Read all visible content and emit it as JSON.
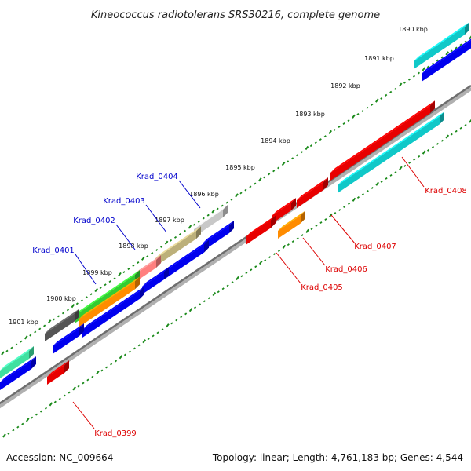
{
  "title": "Kineococcus radiotolerans SRS30216, complete genome",
  "footer": {
    "accession": "Accession: NC_009664",
    "topology": "Topology: linear; Length: 4,761,183 bp; Genes: 4,544"
  },
  "colors": {
    "backbone": "#777777",
    "ruler": "#1a8a1a",
    "label_forward": "#0000cc",
    "label_reverse": "#dd0000",
    "forward_blue": "#0000ee",
    "reverse_red": "#ee0000"
  },
  "ruler_labels": [
    "1890 kbp",
    "1891 kbp",
    "1892 kbp",
    "1893 kbp",
    "1894 kbp",
    "1895 kbp",
    "1896 kbp",
    "1897 kbp",
    "1898 kbp",
    "1899 kbp",
    "1900 kbp",
    "1901 kbp"
  ],
  "gene_labels_top": [
    "Krad_0404",
    "Krad_0403",
    "Krad_0402",
    "Krad_0401"
  ],
  "gene_labels_bottom": [
    "Krad_0408",
    "Krad_0407",
    "Krad_0406",
    "Krad_0405",
    "Krad_0399"
  ]
}
